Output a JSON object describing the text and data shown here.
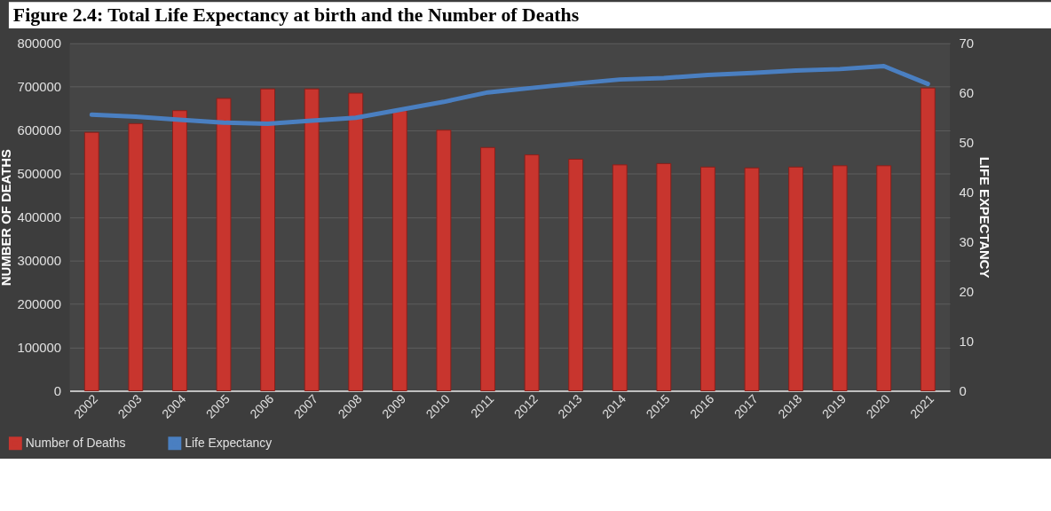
{
  "chart_data": {
    "type": "bar",
    "title": "Figure 2.4: Total Life Expectancy at birth and the Number of Deaths",
    "ylabel": "NUMBER OF DEATHS",
    "y2label": "LIFE EXPECTANCY",
    "categories": [
      "2002",
      "2003",
      "2004",
      "2005",
      "2006",
      "2007",
      "2008",
      "2009",
      "2010",
      "2011",
      "2012",
      "2013",
      "2014",
      "2015",
      "2016",
      "2017",
      "2018",
      "2019",
      "2020",
      "2021"
    ],
    "series": [
      {
        "name": "Number of Deaths",
        "color": "#c8352e",
        "values": [
          595000,
          615000,
          645000,
          673000,
          695000,
          695000,
          685000,
          645000,
          600000,
          560000,
          543000,
          533000,
          520000,
          523000,
          515000,
          513000,
          515000,
          518000,
          518000,
          697000
        ]
      },
      {
        "name": "Life Expectancy",
        "type": "line",
        "axis": "y2",
        "color": "#4a7fc1",
        "values": [
          55.6,
          55.2,
          54.6,
          54.0,
          53.8,
          54.4,
          55.0,
          56.6,
          58.2,
          60.1,
          61.0,
          61.9,
          62.7,
          63.0,
          63.6,
          64.0,
          64.5,
          64.8,
          65.4,
          61.8
        ]
      }
    ],
    "ylim": [
      0,
      800000
    ],
    "yticks": [
      0,
      100000,
      200000,
      300000,
      400000,
      500000,
      600000,
      700000,
      800000
    ],
    "y2lim": [
      0,
      70
    ],
    "y2ticks": [
      0,
      10,
      20,
      30,
      40,
      50,
      60,
      70
    ],
    "grid": "y",
    "legend": "bottom",
    "marker": "none",
    "line_style": "solid"
  }
}
